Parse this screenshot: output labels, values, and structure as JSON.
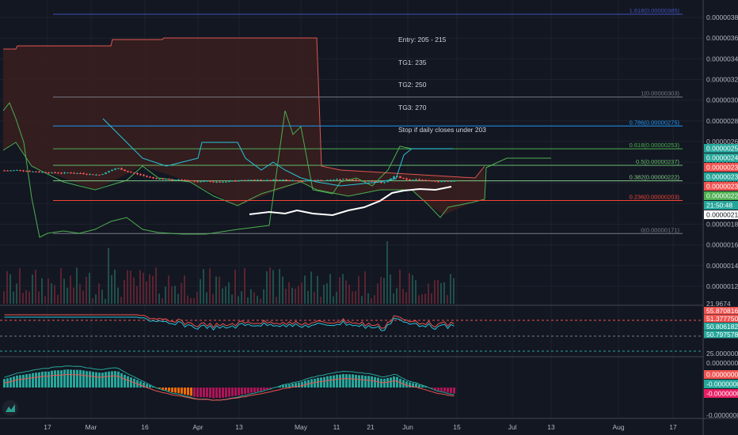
{
  "colors": {
    "background": "#131722",
    "grid": "#1e222d",
    "up": "#26a69a",
    "down": "#ef5350",
    "cloud_fill": "#3a1f1f",
    "cloud_line_red": "#e0564f",
    "cloud_line_green": "#4caf50",
    "fib_top": "#3f51b5",
    "vwap": "#ffffff"
  },
  "note": {
    "entry": "Entry: 205 - 215",
    "tg1": "TG1: 235",
    "tg2": "TG2: 250",
    "tg3": "TG3: 270",
    "stop": "Stop if daily closes under 203"
  },
  "fib_levels": [
    {
      "label": "1.618(0.00000385)",
      "value": 3.85e-06,
      "color": "#3f51b5"
    },
    {
      "label": "1(0.00000303)",
      "value": 3.03e-06,
      "color": "#787b86"
    },
    {
      "label": "0.786(0.00000275)",
      "value": 2.75e-06,
      "color": "#2196f3"
    },
    {
      "label": "0.618(0.00000253)",
      "value": 2.53e-06,
      "color": "#4caf50"
    },
    {
      "label": "0.5(0.00000237)",
      "value": 2.37e-06,
      "color": "#66bb6a"
    },
    {
      "label": "0.382(0.00000222)",
      "value": 2.22e-06,
      "color": "#81c784"
    },
    {
      "label": "0.236(0.00000203)",
      "value": 2.03e-06,
      "color": "#f44336"
    },
    {
      "label": "0(0.00000171)",
      "value": 1.71e-06,
      "color": "#787b86"
    }
  ],
  "price_axis": {
    "ticks": [
      "0.00000380",
      "0.00000360",
      "0.00000340",
      "0.00000320",
      "0.00000300",
      "0.00000280",
      "0.00000260",
      "0.00000240",
      "0.00000220",
      "0.00000200",
      "0.00000180",
      "0.00000160",
      "0.00000140",
      "0.00000120"
    ],
    "tags": [
      {
        "text": "0.00000254",
        "bg": "#26a69a"
      },
      {
        "text": "0.00000244",
        "bg": "#26a69a"
      },
      {
        "text": "0.00000238",
        "bg": "#ef5350"
      },
      {
        "text": "0.00000234",
        "bg": "#26a69a"
      },
      {
        "text": "0.00000230",
        "bg": "#ef5350"
      },
      {
        "text": "0.00000229",
        "bg": "#4caf50"
      },
      {
        "text": "21:50:48",
        "bg": "#26a69a"
      },
      {
        "text": "0.00000214",
        "bg": "#ffffff"
      }
    ]
  },
  "rsi_axis": {
    "ticks": [
      "25.00000000"
    ],
    "tags": [
      {
        "text": "55.87081647",
        "bg": "#ef5350"
      },
      {
        "text": "51.37775095",
        "bg": "#ef5350"
      },
      {
        "text": "50.80618274",
        "bg": "#26a69a"
      },
      {
        "text": "50.79757897",
        "bg": "#26a69a"
      }
    ],
    "top_label": "21.9674"
  },
  "macd_axis": {
    "ticks": [
      "0.00000003",
      "-0.00000002"
    ],
    "tags": [
      {
        "text": "0.00000001",
        "bg": "#ef5350"
      },
      {
        "text": "-0.00000001",
        "bg": "#26a69a"
      },
      {
        "text": "-0.00000002",
        "bg": "#e91e63"
      }
    ],
    "bottom_label": "-0.00000003"
  },
  "time_axis": {
    "labels": [
      "17",
      "Mar",
      "16",
      "Apr",
      "13",
      "May",
      "11",
      "21",
      "Jun",
      "15",
      "Jul",
      "13",
      "Aug",
      "17"
    ]
  },
  "logo_icon": "tradingview-logo-icon"
}
